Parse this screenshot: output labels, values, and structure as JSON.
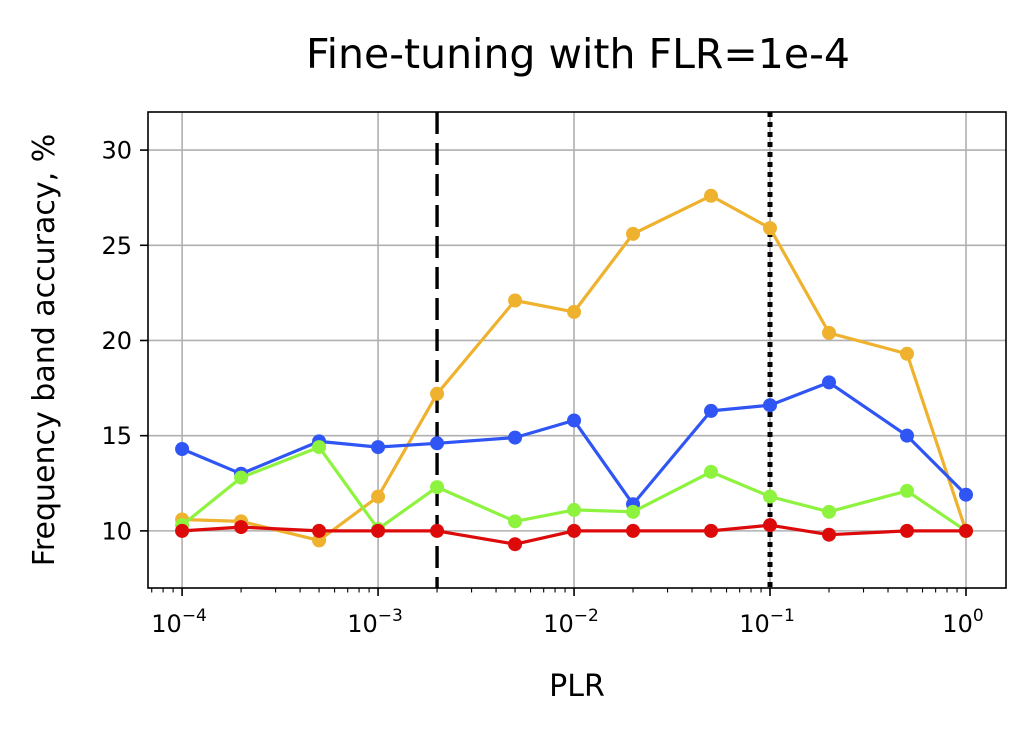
{
  "chart_data": {
    "type": "line",
    "title": "Fine-tuning with FLR=1e-4",
    "xlabel": "PLR",
    "ylabel": "Frequency band accuracy, %",
    "x_scale": "log",
    "xlim": [
      6.7e-05,
      1.6
    ],
    "ylim": [
      7,
      32
    ],
    "x_ticks": [
      {
        "value": 0.0001,
        "base": "10",
        "exp": "−4"
      },
      {
        "value": 0.001,
        "base": "10",
        "exp": "−3"
      },
      {
        "value": 0.01,
        "base": "10",
        "exp": "−2"
      },
      {
        "value": 0.1,
        "base": "10",
        "exp": "−1"
      },
      {
        "value": 1,
        "base": "10",
        "exp": "0"
      }
    ],
    "y_ticks": [
      10,
      15,
      20,
      25,
      30
    ],
    "grid": true,
    "x": [
      0.0001,
      0.0002,
      0.0005,
      0.001,
      0.002,
      0.005,
      0.01,
      0.02,
      0.05,
      0.1,
      0.2,
      0.5,
      1
    ],
    "series": [
      {
        "color": "#eeb22e",
        "values": [
          10.6,
          10.5,
          9.5,
          11.8,
          17.2,
          22.1,
          21.5,
          25.6,
          27.6,
          25.9,
          20.4,
          19.3,
          10.0
        ]
      },
      {
        "color": "#2f55f4",
        "values": [
          14.3,
          13.0,
          14.7,
          14.4,
          14.6,
          14.9,
          15.8,
          11.4,
          16.3,
          16.6,
          17.8,
          15.0,
          11.9
        ]
      },
      {
        "color": "#8ef33f",
        "values": [
          10.3,
          12.8,
          14.4,
          10.1,
          12.3,
          10.5,
          11.1,
          11.0,
          13.1,
          11.8,
          11.0,
          12.1,
          10.0
        ]
      },
      {
        "color": "#dc0a0a",
        "values": [
          10.0,
          10.2,
          10.0,
          10.0,
          10.0,
          9.3,
          10.0,
          10.0,
          10.0,
          10.3,
          9.8,
          10.0,
          10.0
        ]
      }
    ],
    "vlines": [
      {
        "x": 0.002,
        "style": "dashed",
        "color": "#000000"
      },
      {
        "x": 0.1,
        "style": "dotted",
        "color": "#000000"
      }
    ]
  }
}
